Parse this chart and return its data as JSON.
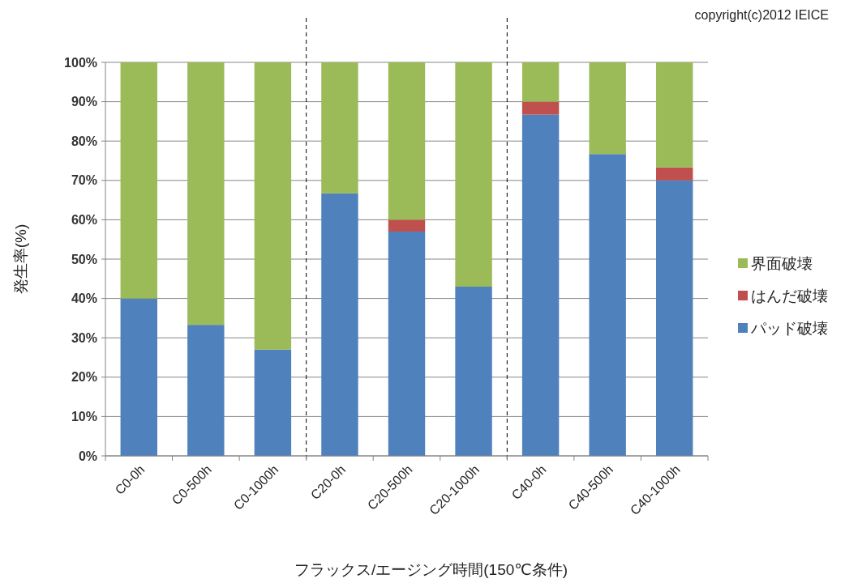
{
  "chart_data": {
    "type": "bar",
    "stacked": true,
    "ylabel": "発生率(%)",
    "xlabel": "フラックス/エージング時間(150℃条件)",
    "annotations": [
      "copyright(c)2012 IEICE"
    ],
    "categories": [
      "C0-0h",
      "C0-500h",
      "C0-1000h",
      "C20-0h",
      "C20-500h",
      "C20-1000h",
      "C40-0h",
      "C40-500h",
      "C40-1000h"
    ],
    "series": [
      {
        "name": "パッド破壊",
        "color": "#4f81bd",
        "values": [
          40,
          33.3,
          27,
          66.7,
          57,
          43,
          86.7,
          76.7,
          70
        ]
      },
      {
        "name": "はんだ破壊",
        "color": "#c0504d",
        "values": [
          0,
          0,
          0,
          0,
          3,
          0,
          3.3,
          0,
          3.3
        ]
      },
      {
        "name": "界面破壊",
        "color": "#9bbb59",
        "values": [
          60,
          66.7,
          73,
          33.3,
          40,
          57,
          10,
          23.3,
          26.7
        ]
      }
    ],
    "ylim": [
      0,
      100
    ],
    "yticks": [
      {
        "value": 0,
        "label": "0%"
      },
      {
        "value": 10,
        "label": "10%"
      },
      {
        "value": 20,
        "label": "20%"
      },
      {
        "value": 30,
        "label": "30%"
      },
      {
        "value": 40,
        "label": "40%"
      },
      {
        "value": 50,
        "label": "50%"
      },
      {
        "value": 60,
        "label": "60%"
      },
      {
        "value": 70,
        "label": "70%"
      },
      {
        "value": 80,
        "label": "80%"
      },
      {
        "value": 90,
        "label": "90%"
      },
      {
        "value": 100,
        "label": "100%"
      }
    ],
    "grid": "y",
    "legend": "right"
  }
}
